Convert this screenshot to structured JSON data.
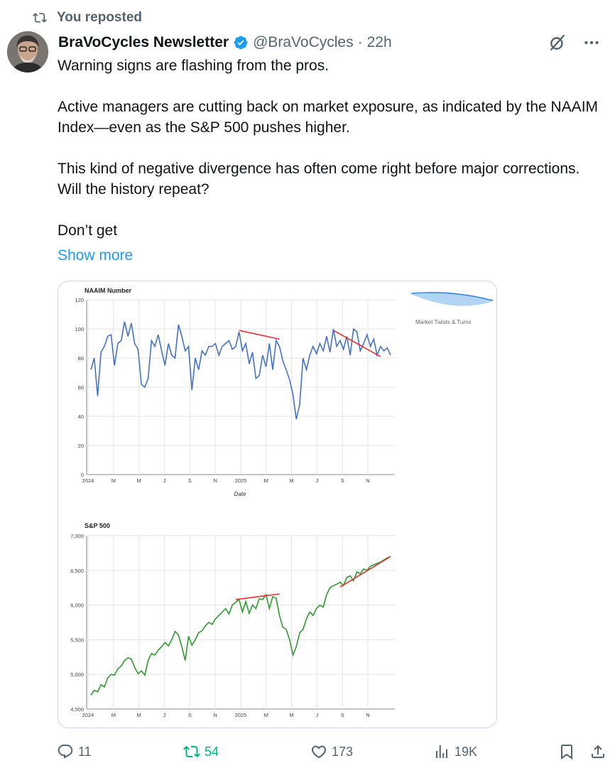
{
  "repost_context": {
    "label": "You reposted"
  },
  "author": {
    "name": "BraVoCycles Newsletter",
    "handle": "@BraVoCycles",
    "separator": "·",
    "time": "22h"
  },
  "tweet": {
    "paragraphs": [
      "Warning signs are flashing from the pros.",
      "Active managers are cutting back on market exposure, as indicated by the NAAIM Index—even as the S&P 500 pushes higher.",
      "This kind of negative divergence has often come right before major corrections. Will the history repeat?",
      "Don’t get"
    ],
    "show_more": "Show more"
  },
  "media": {
    "watermark": "Market Twists & Turns",
    "chart_data": [
      {
        "type": "line",
        "title": "NAAIM Number",
        "xlabel": "Date",
        "ylabel": "",
        "ylim": [
          0,
          120
        ],
        "yticks": [
          "120",
          "100",
          "80",
          "60",
          "40",
          "20",
          "0"
        ],
        "xticks": [
          "2024",
          "M",
          "M",
          "J",
          "S",
          "N",
          "2025",
          "M",
          "M",
          "J",
          "S",
          "N"
        ],
        "grid": true,
        "line_color": "#4472c4",
        "trendline_color": "#e83030",
        "series": [
          {
            "x": [
              0,
              1,
              2,
              3,
              4,
              5,
              6,
              7,
              8,
              9,
              10,
              11,
              12,
              13,
              14,
              15,
              16,
              17,
              18,
              19,
              20,
              21,
              22,
              23,
              24,
              25,
              26,
              27,
              28,
              29,
              30,
              31,
              32,
              33,
              34,
              35,
              36,
              37,
              38,
              39,
              40,
              41,
              42,
              43,
              44,
              45,
              46,
              47,
              48,
              49,
              50,
              51,
              52,
              53,
              54,
              55,
              56,
              57,
              58,
              59,
              60,
              61,
              62,
              63,
              64,
              65,
              66,
              67,
              68,
              69,
              70,
              71,
              72,
              73,
              74,
              75,
              76,
              77,
              78,
              79,
              80,
              81,
              82,
              83,
              84,
              85,
              86,
              87,
              88,
              89
            ],
            "values": [
              72,
              80,
              54,
              84,
              88,
              95,
              96,
              75,
              90,
              92,
              105,
              95,
              104,
              90,
              86,
              62,
              60,
              66,
              92,
              88,
              96,
              85,
              75,
              90,
              82,
              80,
              103,
              95,
              85,
              88,
              58,
              80,
              72,
              85,
              82,
              88,
              88,
              90,
              82,
              88,
              90,
              92,
              86,
              88,
              98,
              85,
              90,
              76,
              84,
              66,
              68,
              82,
              74,
              90,
              72,
              92,
              88,
              78,
              72,
              65,
              55,
              38,
              48,
              80,
              72,
              82,
              88,
              83,
              90,
              85,
              95,
              84,
              100,
              88,
              92,
              86,
              95,
              82,
              100,
              98,
              85,
              90,
              96,
              88,
              93,
              82,
              88,
              85,
              87,
              82
            ]
          }
        ],
        "trendlines": [
          {
            "x": [
              44,
              56
            ],
            "values": [
              99,
              93
            ]
          },
          {
            "x": [
              72,
              86
            ],
            "values": [
              99,
              81
            ]
          }
        ]
      },
      {
        "type": "line",
        "title": "S&P 500",
        "xlabel": "",
        "ylabel": "",
        "ylim": [
          4500,
          7000
        ],
        "yticks": [
          "7,000",
          "6,500",
          "6,000",
          "5,500",
          "5,000",
          "4,500"
        ],
        "xticks": [
          "2024",
          "M",
          "M",
          "J",
          "S",
          "N",
          "2025",
          "M",
          "M",
          "J",
          "S",
          "N"
        ],
        "grid": true,
        "line_color": "#2e9a2e",
        "trendline_color": "#e83030",
        "series": [
          {
            "x": [
              0,
              1,
              2,
              3,
              4,
              5,
              6,
              7,
              8,
              9,
              10,
              11,
              12,
              13,
              14,
              15,
              16,
              17,
              18,
              19,
              20,
              21,
              22,
              23,
              24,
              25,
              26,
              27,
              28,
              29,
              30,
              31,
              32,
              33,
              34,
              35,
              36,
              37,
              38,
              39,
              40,
              41,
              42,
              43,
              44,
              45,
              46,
              47,
              48,
              49,
              50,
              51,
              52,
              53,
              54,
              55,
              56,
              57,
              58,
              59,
              60,
              61,
              62,
              63,
              64,
              65,
              66,
              67,
              68,
              69,
              70,
              71,
              72,
              73,
              74,
              75,
              76,
              77,
              78,
              79,
              80,
              81,
              82,
              83,
              84,
              85,
              86,
              87,
              88,
              89
            ],
            "values": [
              4700,
              4770,
              4750,
              4850,
              4820,
              4950,
              5000,
              4990,
              5080,
              5120,
              5200,
              5240,
              5220,
              5100,
              5010,
              5050,
              4990,
              5200,
              5300,
              5280,
              5350,
              5400,
              5460,
              5410,
              5500,
              5620,
              5570,
              5400,
              5200,
              5550,
              5420,
              5500,
              5600,
              5630,
              5700,
              5750,
              5720,
              5800,
              5850,
              5900,
              5950,
              5870,
              6000,
              6040,
              6080,
              5900,
              6050,
              5880,
              6000,
              5950,
              6090,
              6080,
              6150,
              5950,
              6120,
              6100,
              5850,
              5680,
              5650,
              5500,
              5280,
              5400,
              5600,
              5650,
              5800,
              5900,
              5850,
              5950,
              6000,
              5970,
              6150,
              6250,
              6280,
              6300,
              6330,
              6280,
              6400,
              6420,
              6350,
              6480,
              6450,
              6520,
              6500,
              6560,
              6580,
              6600,
              6620,
              6650,
              6680,
              6700
            ]
          }
        ],
        "trendlines": [
          {
            "x": [
              43,
              56
            ],
            "values": [
              6080,
              6160
            ]
          },
          {
            "x": [
              74,
              89
            ],
            "values": [
              6260,
              6700
            ]
          }
        ]
      }
    ]
  },
  "actions": {
    "replies": "11",
    "reposts": "54",
    "likes": "173",
    "views": "19K"
  },
  "colors": {
    "accent": "#1d9bf0",
    "repost_active": "#00ba7c",
    "muted": "#536471",
    "text": "#0f1419"
  }
}
